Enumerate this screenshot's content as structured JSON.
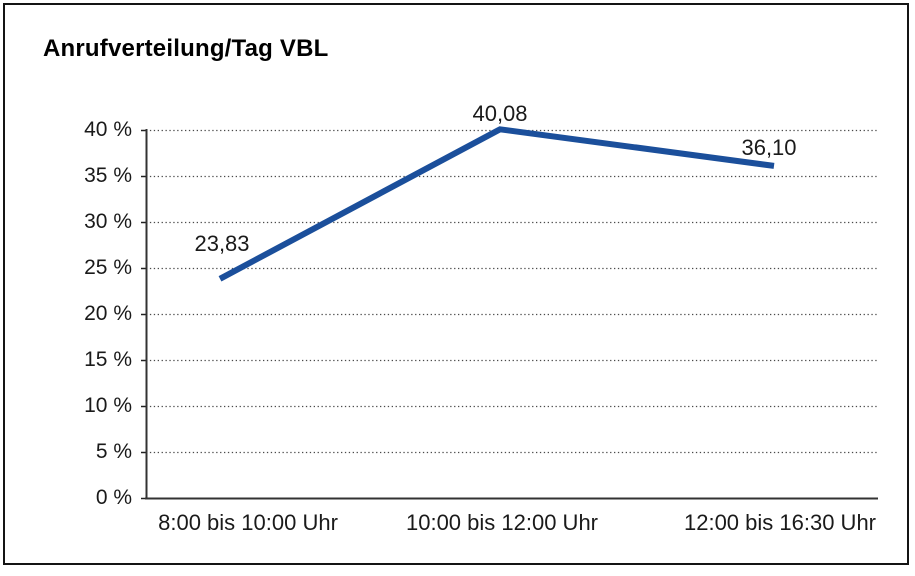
{
  "chart_data": {
    "type": "line",
    "title": "Anrufverteilung/Tag VBL",
    "categories": [
      "8:00 bis 10:00 Uhr",
      "10:00 bis 12:00 Uhr",
      "12:00 bis 16:30 Uhr"
    ],
    "series": [
      {
        "values": [
          23.83,
          40.08,
          36.1
        ]
      }
    ],
    "value_labels": [
      "23,83",
      "40,08",
      "36,10"
    ],
    "y_ticks": [
      "40 %",
      "35 %",
      "30 %",
      "25 %",
      "20 %",
      "15 %",
      "10 %",
      "5 %",
      "0 %"
    ],
    "y_tick_values": [
      40,
      35,
      30,
      25,
      20,
      15,
      10,
      5,
      0
    ],
    "ylim": [
      0,
      40
    ],
    "grid": "horizontal-dotted",
    "legend": "none",
    "line_color": "#1b4f9b",
    "axis_color": "#333333",
    "text_color": "#1a1a1a"
  }
}
